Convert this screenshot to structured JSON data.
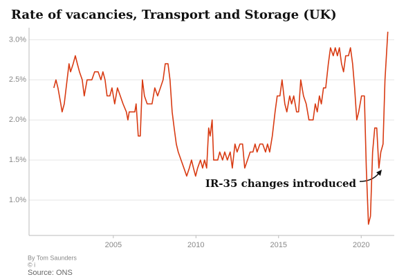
{
  "chart_data": {
    "type": "line",
    "title": "Rate of vacancies, Transport and Storage (UK)",
    "x": [
      2001.4,
      2001.53,
      2001.65,
      2001.82,
      2001.9,
      2002.03,
      2002.2,
      2002.32,
      2002.41,
      2002.57,
      2002.7,
      2002.82,
      2002.95,
      2003.12,
      2003.24,
      2003.41,
      2003.7,
      2003.87,
      2004.08,
      2004.25,
      2004.37,
      2004.5,
      2004.62,
      2004.79,
      2004.92,
      2005.08,
      2005.25,
      2005.42,
      2005.59,
      2005.79,
      2005.88,
      2005.96,
      2006.3,
      2006.38,
      2006.51,
      2006.63,
      2006.76,
      2006.88,
      2007.05,
      2007.34,
      2007.51,
      2007.68,
      2007.85,
      2008.01,
      2008.14,
      2008.31,
      2008.43,
      2008.56,
      2008.68,
      2008.81,
      2008.93,
      2009.1,
      2009.27,
      2009.44,
      2009.6,
      2009.73,
      2009.85,
      2009.98,
      2010.1,
      2010.27,
      2010.4,
      2010.52,
      2010.65,
      2010.77,
      2010.86,
      2010.98,
      2011.07,
      2011.32,
      2011.44,
      2011.61,
      2011.74,
      2011.9,
      2012.07,
      2012.2,
      2012.36,
      2012.49,
      2012.66,
      2012.82,
      2012.95,
      2013.12,
      2013.28,
      2013.45,
      2013.58,
      2013.7,
      2013.87,
      2014.04,
      2014.21,
      2014.33,
      2014.46,
      2014.62,
      2014.79,
      2014.92,
      2015.08,
      2015.21,
      2015.38,
      2015.5,
      2015.67,
      2015.79,
      2015.92,
      2016.09,
      2016.21,
      2016.34,
      2016.51,
      2016.67,
      2016.84,
      2017.09,
      2017.22,
      2017.34,
      2017.47,
      2017.59,
      2017.72,
      2017.85,
      2018.01,
      2018.14,
      2018.31,
      2018.43,
      2018.56,
      2018.68,
      2018.81,
      2018.93,
      2019.06,
      2019.23,
      2019.35,
      2019.48,
      2019.6,
      2019.73,
      2019.85,
      2020.02,
      2020.19,
      2020.31,
      2020.44,
      2020.56,
      2020.69,
      2020.82,
      2020.94,
      2021.07,
      2021.19,
      2021.32,
      2021.44,
      2021.61
    ],
    "series": [
      {
        "color": "#d83a12",
        "values": [
          2.4,
          2.5,
          2.4,
          2.2,
          2.1,
          2.2,
          2.5,
          2.7,
          2.6,
          2.7,
          2.8,
          2.7,
          2.6,
          2.5,
          2.3,
          2.5,
          2.5,
          2.6,
          2.6,
          2.5,
          2.6,
          2.5,
          2.3,
          2.3,
          2.4,
          2.2,
          2.4,
          2.3,
          2.2,
          2.1,
          2.0,
          2.1,
          2.1,
          2.2,
          1.8,
          1.8,
          2.5,
          2.3,
          2.2,
          2.2,
          2.4,
          2.3,
          2.4,
          2.5,
          2.7,
          2.7,
          2.5,
          2.1,
          1.9,
          1.7,
          1.6,
          1.5,
          1.4,
          1.3,
          1.4,
          1.5,
          1.4,
          1.3,
          1.4,
          1.5,
          1.4,
          1.5,
          1.4,
          1.9,
          1.8,
          2.0,
          1.5,
          1.5,
          1.6,
          1.5,
          1.6,
          1.5,
          1.6,
          1.4,
          1.7,
          1.6,
          1.7,
          1.7,
          1.4,
          1.5,
          1.6,
          1.6,
          1.7,
          1.6,
          1.7,
          1.7,
          1.6,
          1.7,
          1.6,
          1.8,
          2.1,
          2.3,
          2.3,
          2.5,
          2.2,
          2.1,
          2.3,
          2.2,
          2.3,
          2.1,
          2.1,
          2.5,
          2.3,
          2.2,
          2.0,
          2.0,
          2.2,
          2.1,
          2.3,
          2.2,
          2.4,
          2.4,
          2.7,
          2.9,
          2.8,
          2.9,
          2.8,
          2.9,
          2.7,
          2.6,
          2.8,
          2.8,
          2.9,
          2.7,
          2.4,
          2.0,
          2.1,
          2.3,
          2.3,
          1.4,
          0.7,
          0.8,
          1.6,
          1.9,
          1.9,
          1.4,
          1.6,
          1.7,
          2.5,
          3.1
        ]
      }
    ],
    "xlim": [
      1999.9,
      2022.0
    ],
    "xticks": [
      2005,
      2010,
      2015,
      2020
    ],
    "ylim": [
      0.56,
      3.15
    ],
    "yticks": [
      {
        "value": 1.0,
        "label": "1.0%"
      },
      {
        "value": 1.5,
        "label": "1.5%"
      },
      {
        "value": 2.0,
        "label": "2.0%"
      },
      {
        "value": 2.5,
        "label": "2.5%"
      },
      {
        "value": 3.0,
        "label": "3.0%"
      }
    ],
    "grid": true,
    "annotation": "IR-35 changes introduced",
    "byline": "By Tom Saunders",
    "copyright": "© i",
    "source": "Source: ONS"
  }
}
